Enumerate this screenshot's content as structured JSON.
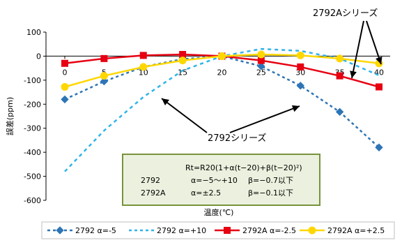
{
  "chart_data": {
    "type": "line",
    "title": "",
    "xlabel": "温度(℃)",
    "ylabel": "誤差(ppm)",
    "x": [
      0,
      5,
      10,
      15,
      20,
      25,
      30,
      35,
      40
    ],
    "x_tick_labels": [
      "0",
      "5",
      "10",
      "15",
      "20",
      "25",
      "30",
      "35",
      "40"
    ],
    "xlim": [
      -0.5,
      40.5
    ],
    "ylim": [
      -600,
      100
    ],
    "y_tick_labels": [
      "100",
      "0",
      "-100",
      "-200",
      "-300",
      "-400",
      "-500",
      "-600"
    ],
    "grid": false,
    "legend_position": "bottom",
    "series": [
      {
        "name": "2792 α=-5",
        "color": "#2e75b6",
        "style": "dashed",
        "marker": "diamond",
        "values": [
          -180,
          -105,
          -45,
          -12,
          0,
          -42,
          -123,
          -232,
          -380
        ]
      },
      {
        "name": "2792 α=+10",
        "color": "#2fb4e9",
        "style": "dashed",
        "marker": "square",
        "values": [
          -480,
          -310,
          -170,
          -60,
          0,
          30,
          22,
          -10,
          -80
        ]
      },
      {
        "name": "2792A α=-2.5",
        "color": "#e60012",
        "style": "solid",
        "marker": "square",
        "values": [
          -30,
          -10,
          3,
          7,
          0,
          -18,
          -45,
          -82,
          -128
        ]
      },
      {
        "name": "2792A α=+2.5",
        "color": "#ffd700",
        "style": "solid",
        "marker": "circle",
        "values": [
          -128,
          -82,
          -45,
          -18,
          0,
          7,
          3,
          -10,
          -30
        ]
      }
    ],
    "annotations": {
      "label_2792A": "2792Aシリーズ",
      "label_2792": "2792シリーズ"
    },
    "formula_box": {
      "line1": "Rt=R20(1+α(t−20)+β(t−20)²)",
      "row1_model": "2792",
      "row1_alpha": "α=−5～+10",
      "row1_beta": "β=−0.7以下",
      "row2_model": "2792A",
      "row2_alpha": "α=±2.5",
      "row2_beta": "β=−0.1以下"
    }
  }
}
